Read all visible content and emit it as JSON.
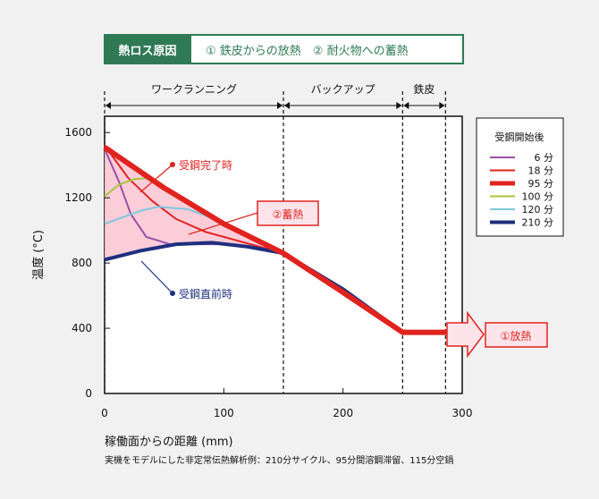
{
  "header": {
    "tag": "熱ロス原因",
    "text": "① 鉄皮からの放熱　② 耐火物への蓄熱"
  },
  "colors": {
    "header_green": "#2f7a55",
    "red": "#e0231e",
    "navy": "#1e2f7e",
    "purple": "#9b4fa6",
    "lime": "#a7c63a",
    "cyan": "#7fc8dc",
    "pink_fill": "#f9c4d2",
    "annot_fill": "#fde4ea"
  },
  "annotations": {
    "ladle_complete": "受鋼完了時",
    "ladle_before": "受鋼直前時",
    "storage": "②蓄熱",
    "radiation": "①放熱"
  },
  "footnote": "実機をモデルにした非定常伝熱解析例：210分サイクル、95分間溶鋼滞留、115分空鍋",
  "chart_data": {
    "type": "line",
    "xlabel": "稼働面からの距離 (mm)",
    "ylabel": "温度 (°C)",
    "xlim": [
      0,
      300
    ],
    "ylim": [
      0,
      1700
    ],
    "xticks": [
      0,
      100,
      200,
      300
    ],
    "yticks": [
      0,
      400,
      800,
      1200,
      1600
    ],
    "zones": [
      {
        "label": "ワークランニング",
        "from": 0,
        "to": 150
      },
      {
        "label": "バックアップ",
        "from": 150,
        "to": 250
      },
      {
        "label": "鉄皮",
        "from": 250,
        "to": 286
      }
    ],
    "legend": {
      "title": "受鋼開始後",
      "position": "top-right"
    },
    "series": [
      {
        "name": "6 分",
        "color": "#9b4fa6",
        "width": 2,
        "points": [
          [
            0,
            1500
          ],
          [
            12,
            1300
          ],
          [
            22,
            1100
          ],
          [
            35,
            960
          ],
          [
            55,
            915
          ],
          [
            100,
            915
          ]
        ]
      },
      {
        "name": "18 分",
        "color": "#e0231e",
        "width": 2,
        "points": [
          [
            0,
            1520
          ],
          [
            20,
            1320
          ],
          [
            40,
            1180
          ],
          [
            60,
            1070
          ],
          [
            85,
            990
          ],
          [
            110,
            940
          ],
          [
            150,
            860
          ]
        ]
      },
      {
        "name": "95 分",
        "color": "#e0231e",
        "width": 6,
        "points": [
          [
            0,
            1510
          ],
          [
            50,
            1260
          ],
          [
            100,
            1040
          ],
          [
            150,
            860
          ],
          [
            200,
            620
          ],
          [
            250,
            375
          ],
          [
            295,
            375
          ]
        ]
      },
      {
        "name": "100 分",
        "color": "#a7c63a",
        "width": 2,
        "points": [
          [
            0,
            1210
          ],
          [
            12,
            1280
          ],
          [
            25,
            1315
          ],
          [
            35,
            1320
          ],
          [
            50,
            1270
          ]
        ]
      },
      {
        "name": "120 分",
        "color": "#7fc8dc",
        "width": 2,
        "points": [
          [
            0,
            1040
          ],
          [
            30,
            1120
          ],
          [
            45,
            1145
          ],
          [
            70,
            1130
          ],
          [
            100,
            1050
          ],
          [
            130,
            930
          ],
          [
            150,
            860
          ]
        ]
      },
      {
        "name": "210 分",
        "color": "#1e2f7e",
        "width": 4,
        "points": [
          [
            0,
            820
          ],
          [
            30,
            875
          ],
          [
            60,
            915
          ],
          [
            90,
            925
          ],
          [
            120,
            900
          ],
          [
            150,
            860
          ],
          [
            200,
            640
          ],
          [
            250,
            375
          ]
        ]
      }
    ]
  }
}
